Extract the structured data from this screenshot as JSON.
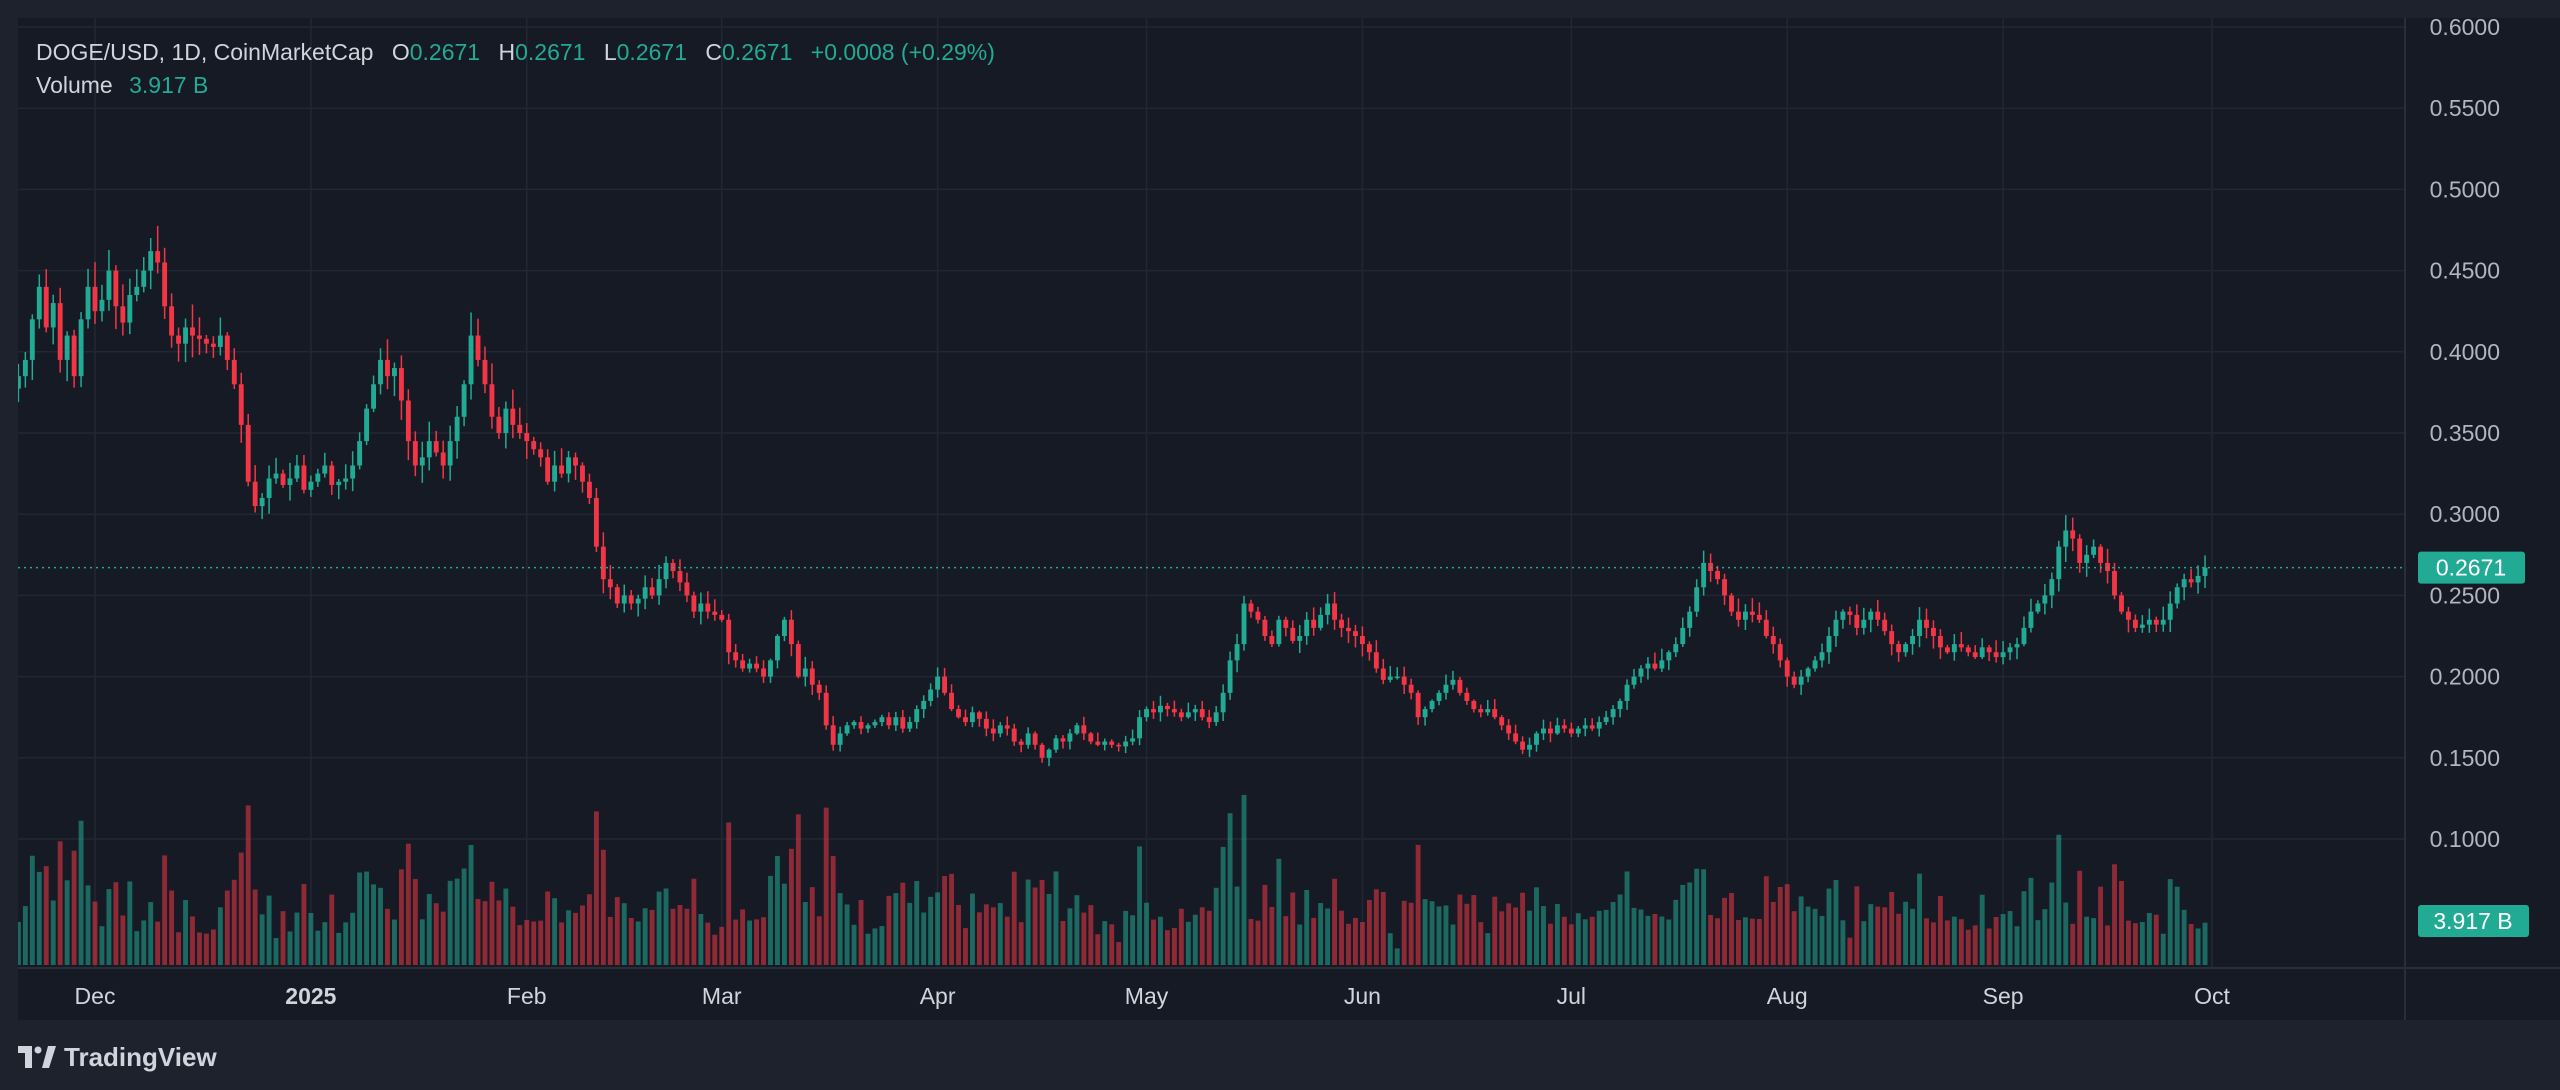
{
  "header": {
    "symbol": "DOGE/USD, 1D, CoinMarketCap",
    "open_label": "O",
    "open": "0.2671",
    "high_label": "H",
    "high": "0.2671",
    "low_label": "L",
    "low": "0.2671",
    "close_label": "C",
    "close": "0.2671",
    "change": "+0.0008 (+0.29%)",
    "volume_label": "Volume",
    "volume": "3.917 B"
  },
  "brand": {
    "name": "TradingView",
    "logo_icon": "tradingview-logo-icon"
  },
  "price_badge": "0.2671",
  "volume_badge": "3.917 B",
  "colors": {
    "background": "#161a25",
    "up": "#22ab94",
    "down": "#f23645",
    "grid": "#232733",
    "text": "#d1d4dc"
  },
  "chart_data": {
    "type": "candlestick",
    "symbol": "DOGE/USD",
    "interval": "1D",
    "source": "CoinMarketCap",
    "y_axis": {
      "position": "right",
      "range": [
        0.07,
        0.605
      ],
      "ticks": [
        "0.6000",
        "0.5500",
        "0.5000",
        "0.4500",
        "0.4000",
        "0.3500",
        "0.3000",
        "0.2500",
        "0.2000",
        "0.1500",
        "0.1000"
      ]
    },
    "x_axis": {
      "labels": [
        {
          "text": "Dec",
          "date": "2024-12-01"
        },
        {
          "text": "2025",
          "date": "2025-01-01",
          "bold": true
        },
        {
          "text": "Feb",
          "date": "2025-02-01"
        },
        {
          "text": "Mar",
          "date": "2025-03-01"
        },
        {
          "text": "Apr",
          "date": "2025-04-01"
        },
        {
          "text": "May",
          "date": "2025-05-01"
        },
        {
          "text": "Jun",
          "date": "2025-06-01"
        },
        {
          "text": "Jul",
          "date": "2025-07-01"
        },
        {
          "text": "Aug",
          "date": "2025-08-01"
        },
        {
          "text": "Sep",
          "date": "2025-09-01"
        },
        {
          "text": "Oct",
          "date": "2025-10-01"
        }
      ]
    },
    "grid": true,
    "current_price_line": 0.2671,
    "first_date": "2024-11-20",
    "close_series": [
      0.385,
      0.395,
      0.42,
      0.44,
      0.415,
      0.43,
      0.395,
      0.41,
      0.385,
      0.42,
      0.44,
      0.425,
      0.432,
      0.45,
      0.428,
      0.418,
      0.435,
      0.44,
      0.45,
      0.462,
      0.455,
      0.428,
      0.41,
      0.405,
      0.415,
      0.41,
      0.408,
      0.405,
      0.403,
      0.41,
      0.395,
      0.38,
      0.355,
      0.32,
      0.305,
      0.31,
      0.322,
      0.325,
      0.318,
      0.322,
      0.33,
      0.315,
      0.32,
      0.325,
      0.33,
      0.318,
      0.32,
      0.322,
      0.33,
      0.345,
      0.365,
      0.38,
      0.395,
      0.385,
      0.39,
      0.37,
      0.345,
      0.33,
      0.335,
      0.345,
      0.338,
      0.33,
      0.345,
      0.36,
      0.38,
      0.41,
      0.395,
      0.38,
      0.36,
      0.35,
      0.365,
      0.355,
      0.35,
      0.345,
      0.34,
      0.335,
      0.32,
      0.33,
      0.325,
      0.335,
      0.33,
      0.32,
      0.31,
      0.28,
      0.26,
      0.255,
      0.245,
      0.25,
      0.245,
      0.248,
      0.255,
      0.25,
      0.26,
      0.27,
      0.265,
      0.258,
      0.25,
      0.24,
      0.245,
      0.24,
      0.238,
      0.235,
      0.215,
      0.21,
      0.205,
      0.208,
      0.205,
      0.2,
      0.21,
      0.225,
      0.235,
      0.22,
      0.2,
      0.205,
      0.195,
      0.19,
      0.17,
      0.158,
      0.165,
      0.17,
      0.172,
      0.168,
      0.17,
      0.172,
      0.175,
      0.17,
      0.175,
      0.168,
      0.172,
      0.18,
      0.185,
      0.192,
      0.2,
      0.19,
      0.18,
      0.175,
      0.172,
      0.178,
      0.174,
      0.168,
      0.165,
      0.17,
      0.168,
      0.16,
      0.158,
      0.165,
      0.158,
      0.15,
      0.155,
      0.162,
      0.16,
      0.165,
      0.17,
      0.165,
      0.16,
      0.158,
      0.16,
      0.158,
      0.157,
      0.16,
      0.162,
      0.175,
      0.18,
      0.178,
      0.182,
      0.18,
      0.178,
      0.175,
      0.178,
      0.18,
      0.175,
      0.172,
      0.178,
      0.19,
      0.21,
      0.22,
      0.245,
      0.24,
      0.235,
      0.225,
      0.22,
      0.235,
      0.23,
      0.222,
      0.225,
      0.235,
      0.23,
      0.238,
      0.245,
      0.235,
      0.23,
      0.228,
      0.225,
      0.22,
      0.215,
      0.205,
      0.198,
      0.2,
      0.2,
      0.195,
      0.19,
      0.175,
      0.18,
      0.185,
      0.19,
      0.195,
      0.198,
      0.19,
      0.185,
      0.18,
      0.178,
      0.18,
      0.175,
      0.17,
      0.165,
      0.16,
      0.155,
      0.158,
      0.165,
      0.168,
      0.165,
      0.17,
      0.168,
      0.165,
      0.168,
      0.17,
      0.168,
      0.172,
      0.175,
      0.18,
      0.185,
      0.195,
      0.2,
      0.205,
      0.208,
      0.205,
      0.21,
      0.215,
      0.22,
      0.23,
      0.24,
      0.255,
      0.27,
      0.265,
      0.26,
      0.25,
      0.24,
      0.235,
      0.24,
      0.238,
      0.235,
      0.225,
      0.22,
      0.21,
      0.2,
      0.195,
      0.2,
      0.205,
      0.21,
      0.215,
      0.225,
      0.235,
      0.24,
      0.238,
      0.23,
      0.235,
      0.24,
      0.235,
      0.228,
      0.22,
      0.215,
      0.22,
      0.225,
      0.235,
      0.23,
      0.225,
      0.218,
      0.215,
      0.22,
      0.218,
      0.215,
      0.212,
      0.218,
      0.215,
      0.212,
      0.215,
      0.218,
      0.22,
      0.23,
      0.24,
      0.245,
      0.25,
      0.26,
      0.28,
      0.29,
      0.285,
      0.27,
      0.275,
      0.28,
      0.27,
      0.265,
      0.25,
      0.24,
      0.235,
      0.23,
      0.232,
      0.235,
      0.232,
      0.235,
      0.245,
      0.255,
      0.26,
      0.258,
      0.262,
      0.2671
    ],
    "volume": {
      "unit": "B",
      "last": 3.917
    }
  }
}
